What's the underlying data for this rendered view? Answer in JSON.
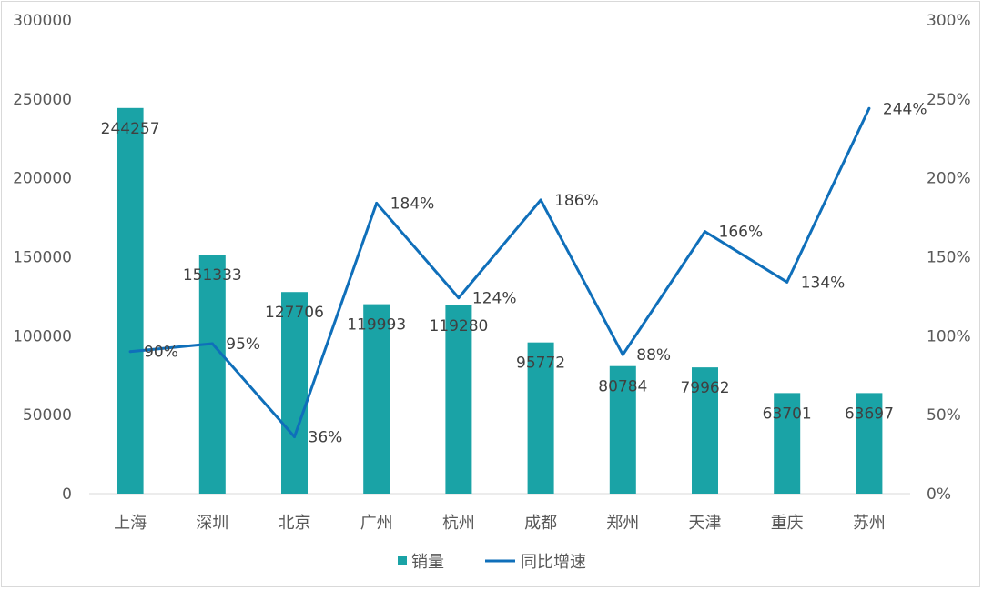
{
  "chart_data": {
    "type": "bar",
    "categories": [
      "上海",
      "深圳",
      "北京",
      "广州",
      "杭州",
      "成都",
      "郑州",
      "天津",
      "重庆",
      "苏州"
    ],
    "series": [
      {
        "name": "销量",
        "type": "bar",
        "axis": "left",
        "color": "#1aa3a6",
        "values": [
          244257,
          151333,
          127706,
          119993,
          119280,
          95772,
          80784,
          79962,
          63701,
          63697
        ],
        "labels": [
          "244257",
          "151333",
          "127706",
          "119993",
          "119280",
          "95772",
          "80784",
          "79962",
          "63701",
          "63697"
        ]
      },
      {
        "name": "同比增速",
        "type": "line",
        "axis": "right",
        "color": "#0f6fba",
        "values": [
          90,
          95,
          36,
          184,
          124,
          186,
          88,
          166,
          134,
          244
        ],
        "labels": [
          "90%",
          "95%",
          "36%",
          "184%",
          "124%",
          "186%",
          "88%",
          "166%",
          "134%",
          "244%"
        ]
      }
    ],
    "y_left": {
      "ylim": [
        0,
        300000
      ],
      "ticks": [
        "0",
        "50000",
        "100000",
        "150000",
        "200000",
        "250000",
        "300000"
      ]
    },
    "y_right": {
      "ylim": [
        0,
        300
      ],
      "ticks": [
        "0%",
        "50%",
        "100%",
        "150%",
        "200%",
        "250%",
        "300%"
      ]
    },
    "grid": false,
    "legend_position": "bottom"
  }
}
